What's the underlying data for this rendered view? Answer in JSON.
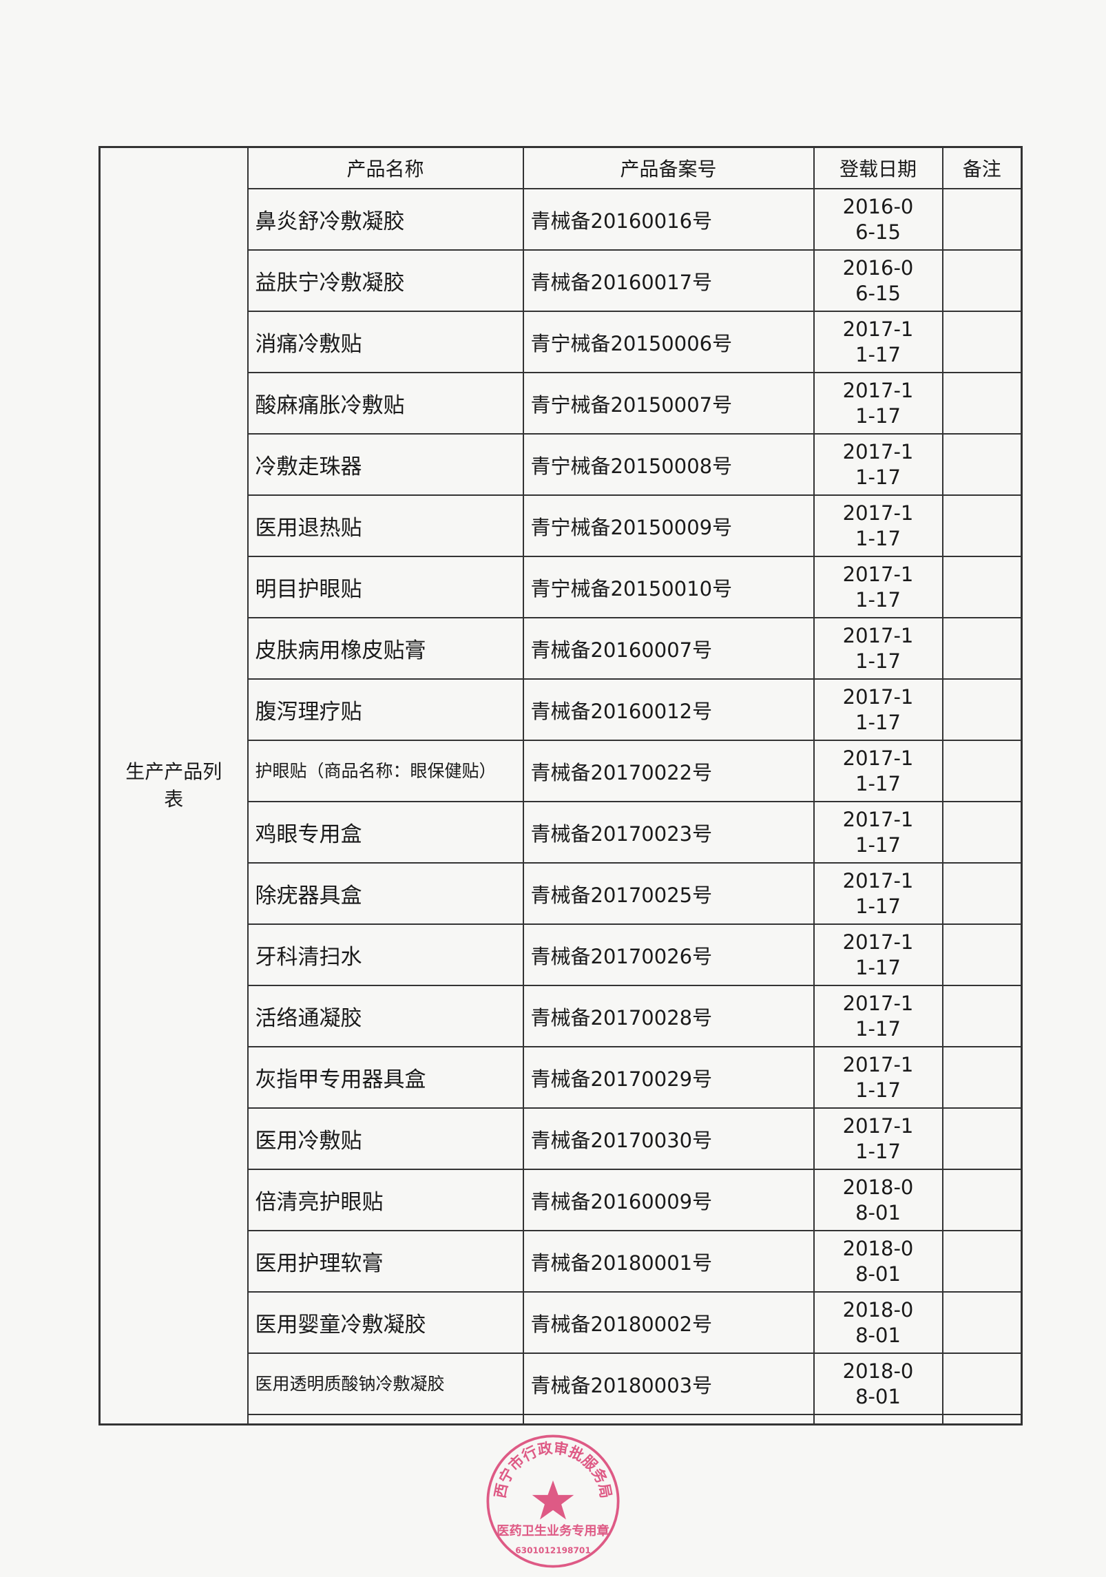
{
  "section_label": "生产产品列表",
  "headers": [
    "产品名称",
    "产品备案号",
    "登载日期",
    "备注"
  ],
  "rows": [
    {
      "name": "鼻炎舒冷敷凝胶",
      "code": "青械备20160016号",
      "date": "2016-06-15",
      "note": ""
    },
    {
      "name": "益肤宁冷敷凝胶",
      "code": "青械备20160017号",
      "date": "2016-06-15",
      "note": ""
    },
    {
      "name": "消痛冷敷贴",
      "code": "青宁械备20150006号",
      "date": "2017-11-17",
      "note": ""
    },
    {
      "name": "酸麻痛胀冷敷贴",
      "code": "青宁械备20150007号",
      "date": "2017-11-17",
      "note": ""
    },
    {
      "name": "冷敷走珠器",
      "code": "青宁械备20150008号",
      "date": "2017-11-17",
      "note": ""
    },
    {
      "name": "医用退热贴",
      "code": "青宁械备20150009号",
      "date": "2017-11-17",
      "note": ""
    },
    {
      "name": "明目护眼贴",
      "code": "青宁械备20150010号",
      "date": "2017-11-17",
      "note": ""
    },
    {
      "name": "皮肤病用橡皮贴膏",
      "code": "青械备20160007号",
      "date": "2017-11-17",
      "note": ""
    },
    {
      "name": "腹泻理疗贴",
      "code": "青械备20160012号",
      "date": "2017-11-17",
      "note": ""
    },
    {
      "name": "护眼贴（商品名称：眼保健贴）",
      "code": "青械备20170022号",
      "date": "2017-11-17",
      "note": ""
    },
    {
      "name": "鸡眼专用盒",
      "code": "青械备20170023号",
      "date": "2017-11-17",
      "note": ""
    },
    {
      "name": "除疣器具盒",
      "code": "青械备20170025号",
      "date": "2017-11-17",
      "note": ""
    },
    {
      "name": "牙科清扫水",
      "code": "青械备20170026号",
      "date": "2017-11-17",
      "note": ""
    },
    {
      "name": "活络通凝胶",
      "code": "青械备20170028号",
      "date": "2017-11-17",
      "note": ""
    },
    {
      "name": "灰指甲专用器具盒",
      "code": "青械备20170029号",
      "date": "2017-11-17",
      "note": ""
    },
    {
      "name": "医用冷敷贴",
      "code": "青械备20170030号",
      "date": "2017-11-17",
      "note": ""
    },
    {
      "name": "倍清亮护眼贴",
      "code": "青械备20160009号",
      "date": "2018-08-01",
      "note": ""
    },
    {
      "name": "医用护理软膏",
      "code": "青械备20180001号",
      "date": "2018-08-01",
      "note": ""
    },
    {
      "name": "医用婴童冷敷凝胶",
      "code": "青械备20180002号",
      "date": "2018-08-01",
      "note": ""
    },
    {
      "name": "医用透明质酸钠冷敷凝胶",
      "code": "青械备20180003号",
      "date": "2018-08-01",
      "note": ""
    }
  ],
  "stamp": {
    "top_text": "西宁市行政审批服务局",
    "bottom_text": "医药卫生业务专用章",
    "number": "6301012198701",
    "color": "#d9336a"
  }
}
